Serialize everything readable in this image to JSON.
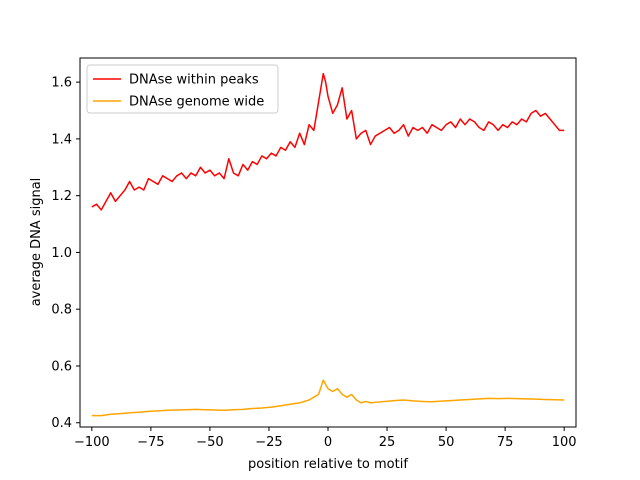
{
  "chart_data": {
    "type": "line",
    "xlabel": "position relative to motif",
    "ylabel": "average DNA signal",
    "xlim": [
      -105,
      105
    ],
    "ylim": [
      0.385,
      1.685
    ],
    "xticks": [
      -100,
      -75,
      -50,
      -25,
      0,
      25,
      50,
      75,
      100
    ],
    "xtick_labels": [
      "−100",
      "−75",
      "−50",
      "−25",
      "0",
      "25",
      "50",
      "75",
      "100"
    ],
    "yticks": [
      0.4,
      0.6,
      0.8,
      1.0,
      1.2,
      1.4,
      1.6
    ],
    "ytick_labels": [
      "0.4",
      "0.6",
      "0.8",
      "1.0",
      "1.2",
      "1.4",
      "1.6"
    ],
    "grid": false,
    "legend": "upper left",
    "series": [
      {
        "name": "DNAse within peaks",
        "color": "#ff0000",
        "x": [
          -100,
          -98,
          -96,
          -94,
          -92,
          -90,
          -88,
          -86,
          -84,
          -82,
          -80,
          -78,
          -76,
          -74,
          -72,
          -70,
          -68,
          -66,
          -64,
          -62,
          -60,
          -58,
          -56,
          -54,
          -52,
          -50,
          -48,
          -46,
          -44,
          -42,
          -40,
          -38,
          -36,
          -34,
          -32,
          -30,
          -28,
          -26,
          -24,
          -22,
          -20,
          -18,
          -16,
          -14,
          -12,
          -10,
          -8,
          -6,
          -4,
          -2,
          -1,
          0,
          2,
          4,
          6,
          8,
          10,
          12,
          14,
          16,
          18,
          20,
          22,
          24,
          26,
          28,
          30,
          32,
          34,
          36,
          38,
          40,
          42,
          44,
          46,
          48,
          50,
          52,
          54,
          56,
          58,
          60,
          62,
          64,
          66,
          68,
          70,
          72,
          74,
          76,
          78,
          80,
          82,
          84,
          86,
          88,
          90,
          92,
          94,
          96,
          98,
          100
        ],
        "values": [
          1.16,
          1.17,
          1.15,
          1.18,
          1.21,
          1.18,
          1.2,
          1.22,
          1.25,
          1.22,
          1.23,
          1.22,
          1.26,
          1.25,
          1.24,
          1.27,
          1.26,
          1.25,
          1.27,
          1.28,
          1.26,
          1.28,
          1.27,
          1.3,
          1.28,
          1.29,
          1.27,
          1.28,
          1.26,
          1.33,
          1.28,
          1.27,
          1.31,
          1.29,
          1.32,
          1.31,
          1.34,
          1.33,
          1.35,
          1.34,
          1.37,
          1.36,
          1.39,
          1.37,
          1.42,
          1.38,
          1.45,
          1.43,
          1.53,
          1.63,
          1.6,
          1.55,
          1.49,
          1.52,
          1.58,
          1.47,
          1.5,
          1.4,
          1.42,
          1.43,
          1.38,
          1.41,
          1.42,
          1.43,
          1.44,
          1.42,
          1.43,
          1.45,
          1.41,
          1.44,
          1.43,
          1.44,
          1.42,
          1.45,
          1.44,
          1.43,
          1.45,
          1.46,
          1.44,
          1.47,
          1.45,
          1.47,
          1.46,
          1.44,
          1.43,
          1.46,
          1.45,
          1.43,
          1.45,
          1.44,
          1.46,
          1.45,
          1.47,
          1.46,
          1.49,
          1.5,
          1.48,
          1.49,
          1.47,
          1.45,
          1.43,
          1.43
        ],
        "peak": 1.63
      },
      {
        "name": "DNAse genome wide",
        "color": "#ffa500",
        "x": [
          -100,
          -96,
          -92,
          -88,
          -84,
          -80,
          -76,
          -72,
          -68,
          -64,
          -60,
          -56,
          -52,
          -48,
          -44,
          -40,
          -36,
          -32,
          -28,
          -24,
          -20,
          -16,
          -12,
          -10,
          -8,
          -6,
          -4,
          -2,
          0,
          2,
          4,
          6,
          8,
          10,
          12,
          14,
          16,
          18,
          20,
          24,
          28,
          32,
          36,
          40,
          44,
          48,
          52,
          56,
          60,
          64,
          68,
          72,
          76,
          80,
          84,
          88,
          92,
          96,
          100
        ],
        "values": [
          0.425,
          0.425,
          0.43,
          0.432,
          0.435,
          0.437,
          0.44,
          0.442,
          0.444,
          0.445,
          0.446,
          0.447,
          0.446,
          0.445,
          0.444,
          0.446,
          0.447,
          0.45,
          0.452,
          0.455,
          0.46,
          0.465,
          0.47,
          0.475,
          0.48,
          0.49,
          0.5,
          0.55,
          0.52,
          0.51,
          0.52,
          0.5,
          0.49,
          0.5,
          0.48,
          0.47,
          0.475,
          0.47,
          0.472,
          0.475,
          0.478,
          0.48,
          0.477,
          0.475,
          0.474,
          0.476,
          0.478,
          0.48,
          0.482,
          0.484,
          0.486,
          0.485,
          0.486,
          0.485,
          0.484,
          0.483,
          0.482,
          0.481,
          0.48
        ]
      }
    ]
  }
}
